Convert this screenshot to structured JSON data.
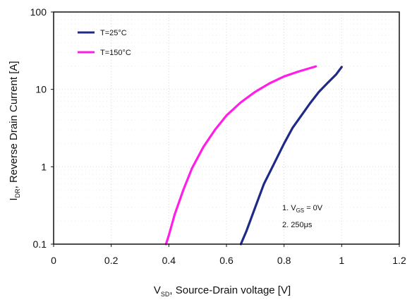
{
  "chart_data": {
    "type": "line",
    "title": "",
    "xlabel": {
      "main": "V",
      "sub": "SD",
      "rest": ", Source-Drain voltage [V]"
    },
    "ylabel": {
      "main": "I",
      "sub": "DR",
      "rest": ", Reverse Drain Current [A]"
    },
    "xlim": [
      0,
      1.2
    ],
    "ylim": [
      0.1,
      100
    ],
    "yscale": "log",
    "grid": true,
    "x_ticks": [
      0,
      0.2,
      0.4,
      0.6,
      0.8,
      1,
      1.2
    ],
    "x_tick_labels": [
      "0",
      "0.2",
      "0.4",
      "0.6",
      "0.8",
      "1",
      "1.2"
    ],
    "y_ticks": [
      0.1,
      1,
      10,
      100
    ],
    "y_tick_labels": [
      "0.1",
      "1",
      "10",
      "100"
    ],
    "legend_position": "top-left",
    "series": [
      {
        "name": "T=25°C",
        "color": "#1f2a87",
        "points": [
          [
            0.65,
            0.1
          ],
          [
            0.67,
            0.15
          ],
          [
            0.7,
            0.3
          ],
          [
            0.73,
            0.6
          ],
          [
            0.76,
            1.0
          ],
          [
            0.8,
            2.0
          ],
          [
            0.83,
            3.2
          ],
          [
            0.86,
            4.6
          ],
          [
            0.89,
            6.6
          ],
          [
            0.92,
            9.2
          ],
          [
            0.95,
            12
          ],
          [
            0.98,
            15.5
          ],
          [
            1.0,
            19.5
          ]
        ]
      },
      {
        "name": "T=150°C",
        "color": "#ff1ee6",
        "points": [
          [
            0.39,
            0.1
          ],
          [
            0.4,
            0.13
          ],
          [
            0.42,
            0.24
          ],
          [
            0.45,
            0.5
          ],
          [
            0.48,
            0.95
          ],
          [
            0.52,
            1.8
          ],
          [
            0.56,
            3.0
          ],
          [
            0.6,
            4.6
          ],
          [
            0.65,
            6.8
          ],
          [
            0.7,
            9.3
          ],
          [
            0.75,
            12.0
          ],
          [
            0.8,
            14.7
          ],
          [
            0.85,
            17.0
          ],
          [
            0.91,
            19.8
          ]
        ]
      }
    ],
    "annotations": [
      "1. V",
      "2. 250μs"
    ],
    "annotation_detail": {
      "line1_sub": "GS",
      "line1_rest": " = 0V"
    }
  }
}
